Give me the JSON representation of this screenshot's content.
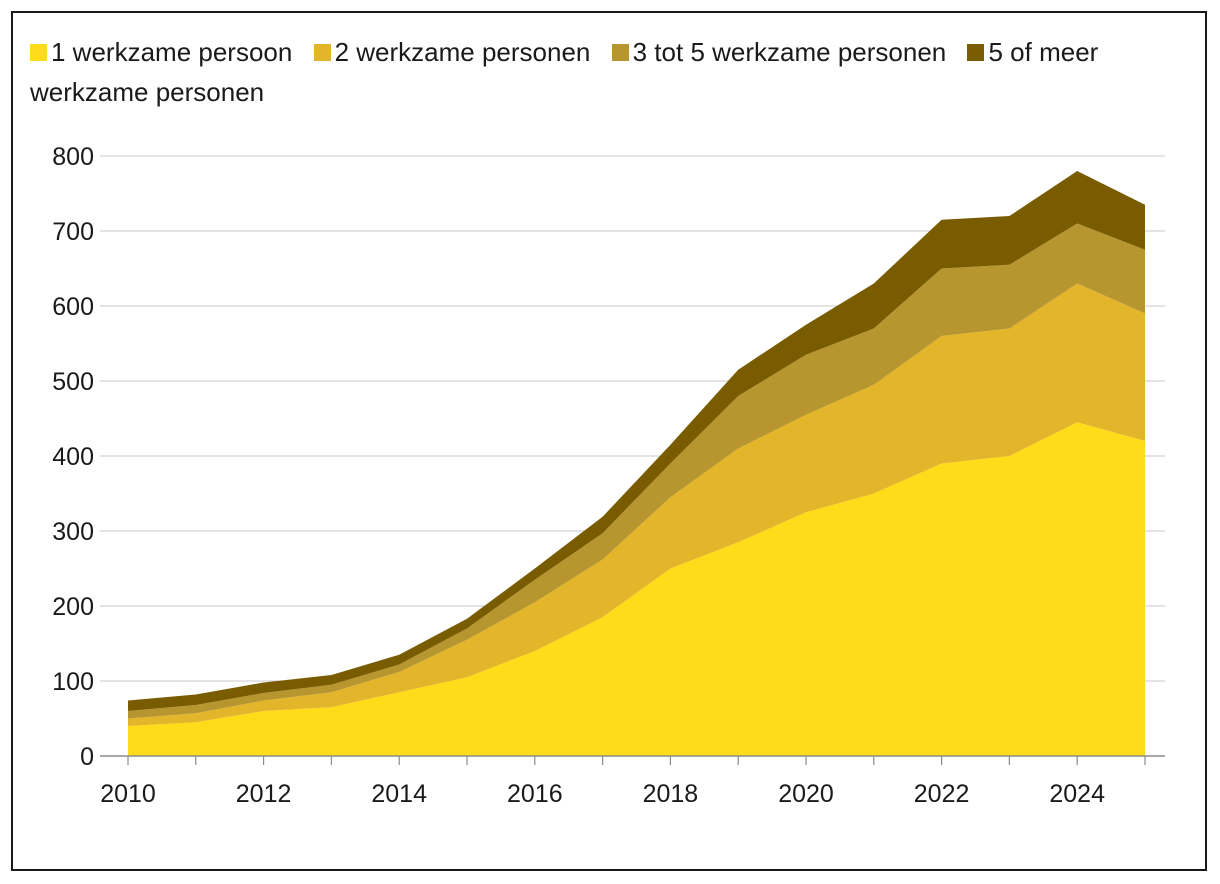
{
  "chart_data": {
    "type": "area",
    "stacked": true,
    "title": "",
    "xlabel": "",
    "ylabel": "",
    "x": [
      2010,
      2011,
      2012,
      2013,
      2014,
      2015,
      2016,
      2017,
      2018,
      2019,
      2020,
      2021,
      2022,
      2023,
      2024,
      2025
    ],
    "x_ticks": [
      2010,
      2012,
      2014,
      2016,
      2018,
      2020,
      2022,
      2024
    ],
    "x_tick_labels": [
      "2010",
      "2012",
      "2014",
      "2016",
      "2018",
      "2020",
      "2022",
      "2024"
    ],
    "ylim": [
      0,
      800
    ],
    "y_ticks": [
      0,
      100,
      200,
      300,
      400,
      500,
      600,
      700,
      800
    ],
    "y_tick_labels": [
      "0",
      "100",
      "200",
      "300",
      "400",
      "500",
      "600",
      "700",
      "800"
    ],
    "grid": true,
    "legend_position": "top",
    "series": [
      {
        "name": "1 werkzame persoon",
        "color": "#FFDC1A",
        "values": [
          40,
          45,
          60,
          65,
          85,
          105,
          140,
          185,
          250,
          285,
          325,
          350,
          390,
          400,
          445,
          420
        ]
      },
      {
        "name": "2 werkzame personen",
        "color": "#E3B52B",
        "values": [
          10,
          12,
          14,
          20,
          27,
          50,
          65,
          77,
          95,
          125,
          130,
          145,
          170,
          170,
          185,
          170
        ]
      },
      {
        "name": "3 tot 5 werkzame personen",
        "color": "#B8962F",
        "values": [
          10,
          11,
          10,
          10,
          10,
          15,
          30,
          35,
          45,
          70,
          80,
          75,
          90,
          85,
          80,
          85
        ]
      },
      {
        "name": "5 of meer werkzame personen",
        "color": "#7A5C00",
        "values": [
          14,
          14,
          14,
          13,
          13,
          13,
          15,
          22,
          25,
          35,
          40,
          60,
          65,
          65,
          70,
          60
        ]
      }
    ]
  }
}
